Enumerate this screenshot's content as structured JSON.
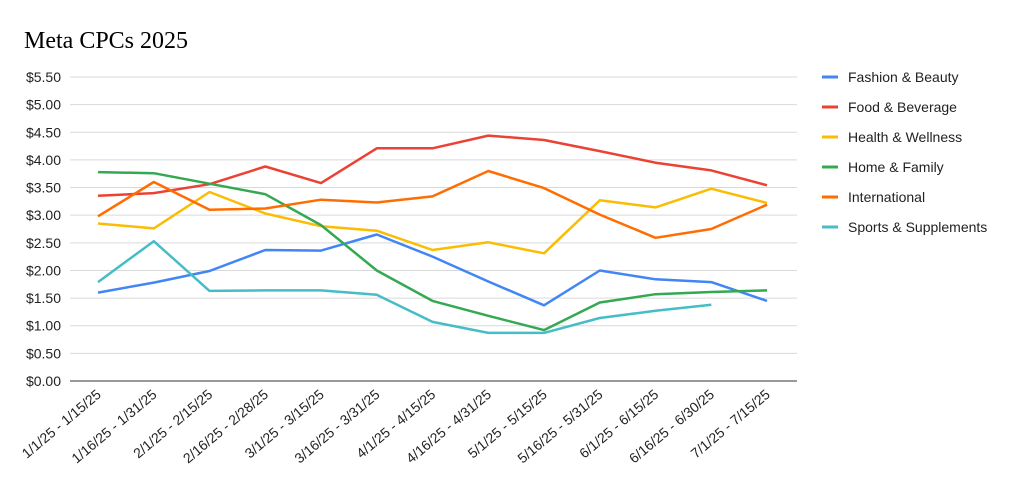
{
  "chart_data": {
    "type": "line",
    "title": "Meta CPCs 2025",
    "xlabel": "",
    "ylabel": "",
    "ylim": [
      0,
      5.5
    ],
    "yticks": [
      "$0.00",
      "$0.50",
      "$1.00",
      "$1.50",
      "$2.00",
      "$2.50",
      "$3.00",
      "$3.50",
      "$4.00",
      "$4.50",
      "$5.00",
      "$5.50"
    ],
    "grid": true,
    "legend_position": "right",
    "categories": [
      "1/1/25 - 1/15/25",
      "1/16/25 - 1/31/25",
      "2/1/25 - 2/15/25",
      "2/16/25 - 2/28/25",
      "3/1/25 - 3/15/25",
      "3/16/25 - 3/31/25",
      "4/1/25 - 4/15/25",
      "4/16/25 - 4/31/25",
      "5/1/25 - 5/15/25",
      "5/16/25 - 5/31/25",
      "6/1/25 - 6/15/25",
      "6/16/25 - 6/30/25",
      "7/1/25 - 7/15/25"
    ],
    "series": [
      {
        "name": "Fashion & Beauty",
        "color": "#4285f4",
        "values": [
          1.6,
          1.78,
          1.99,
          2.37,
          2.36,
          2.65,
          2.25,
          1.8,
          1.37,
          2.0,
          1.84,
          1.79,
          1.45
        ]
      },
      {
        "name": "Food & Beverage",
        "color": "#ea4335",
        "values": [
          3.35,
          3.4,
          3.56,
          3.88,
          3.58,
          4.21,
          4.21,
          4.44,
          4.36,
          4.16,
          3.95,
          3.81,
          3.54
        ]
      },
      {
        "name": "Health & Wellness",
        "color": "#fbbc04",
        "values": [
          2.85,
          2.76,
          3.42,
          3.03,
          2.8,
          2.72,
          2.37,
          2.51,
          2.31,
          3.27,
          3.14,
          3.48,
          3.22
        ]
      },
      {
        "name": "Home & Family",
        "color": "#34a853",
        "values": [
          3.78,
          3.76,
          3.57,
          3.38,
          2.82,
          2.0,
          1.45,
          1.18,
          0.92,
          1.42,
          1.57,
          1.61,
          1.64
        ]
      },
      {
        "name": "International",
        "color": "#ff6d01",
        "values": [
          2.98,
          3.6,
          3.1,
          3.12,
          3.28,
          3.23,
          3.34,
          3.8,
          3.49,
          3.01,
          2.59,
          2.75,
          3.19
        ]
      },
      {
        "name": "Sports & Supplements",
        "color": "#46bdc6",
        "values": [
          1.79,
          2.53,
          1.63,
          1.64,
          1.64,
          1.56,
          1.07,
          0.87,
          0.87,
          1.14,
          1.27,
          1.38,
          null
        ]
      }
    ]
  }
}
